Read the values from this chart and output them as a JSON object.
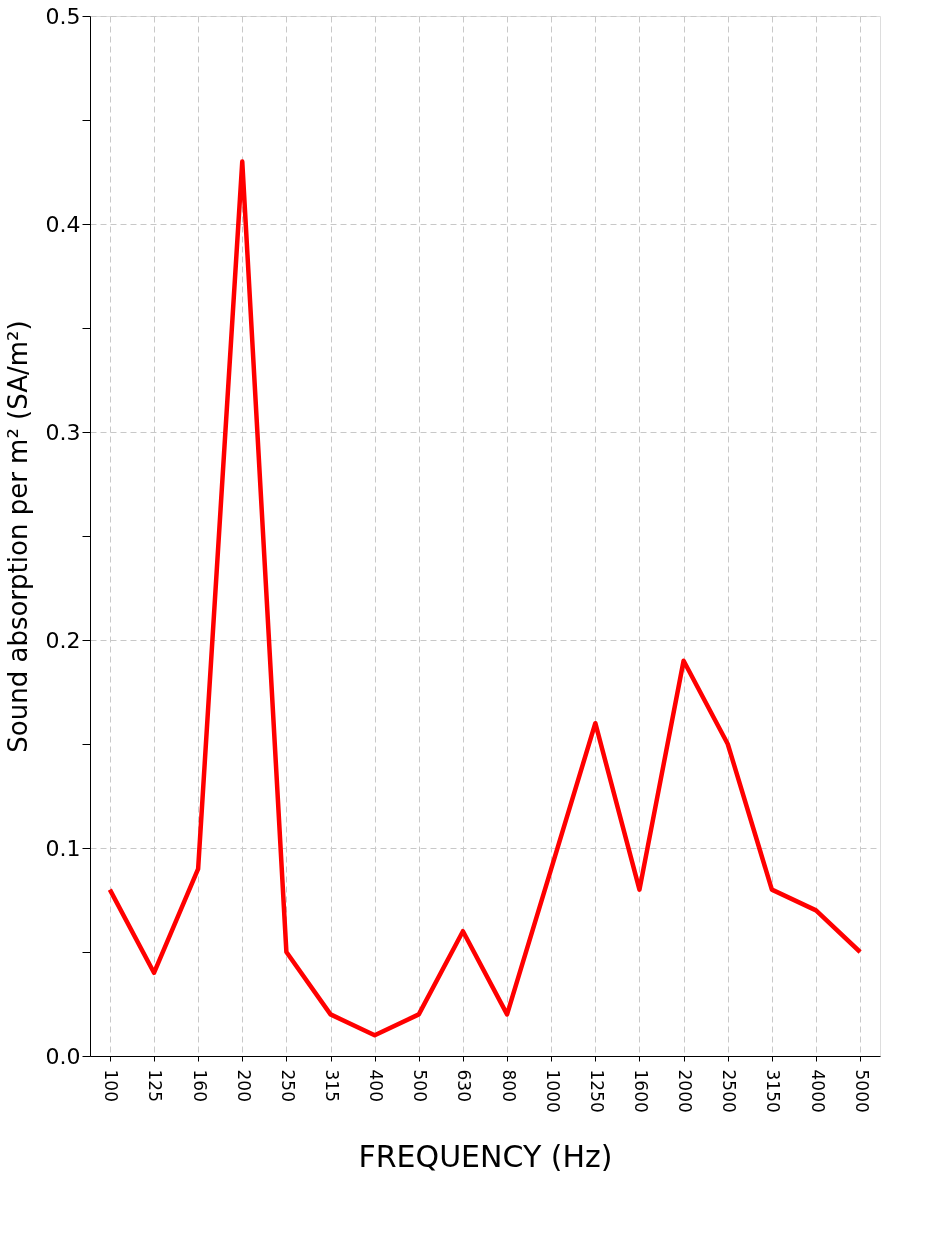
{
  "chart_data": {
    "type": "line",
    "xlabel": "FREQUENCY (Hz)",
    "ylabel": "Sound absorption per m² (SA/m²)",
    "categories": [
      "100",
      "125",
      "160",
      "200",
      "250",
      "315",
      "400",
      "500",
      "630",
      "800",
      "1000",
      "1250",
      "1600",
      "2000",
      "2500",
      "3150",
      "4000",
      "5000"
    ],
    "series": [
      {
        "color": "#ff0000",
        "values": [
          0.08,
          0.04,
          0.09,
          0.43,
          0.05,
          0.02,
          0.01,
          0.02,
          0.06,
          0.02,
          0.09,
          0.16,
          0.08,
          0.19,
          0.15,
          0.08,
          0.07,
          0.05
        ]
      }
    ],
    "ylim": [
      0,
      0.5
    ],
    "yticks": [
      {
        "value": 0,
        "label": "0.0"
      },
      {
        "value": 0.05,
        "label": null
      },
      {
        "value": 0.1,
        "label": "0.1"
      },
      {
        "value": 0.15,
        "label": null
      },
      {
        "value": 0.2,
        "label": "0.2"
      },
      {
        "value": 0.25,
        "label": null
      },
      {
        "value": 0.3,
        "label": "0.3"
      },
      {
        "value": 0.35,
        "label": null
      },
      {
        "value": 0.4,
        "label": "0.4"
      },
      {
        "value": 0.45,
        "label": null
      },
      {
        "value": 0.5,
        "label": "0.5"
      }
    ],
    "grid": true,
    "marker": "none",
    "line_style": "solid"
  }
}
